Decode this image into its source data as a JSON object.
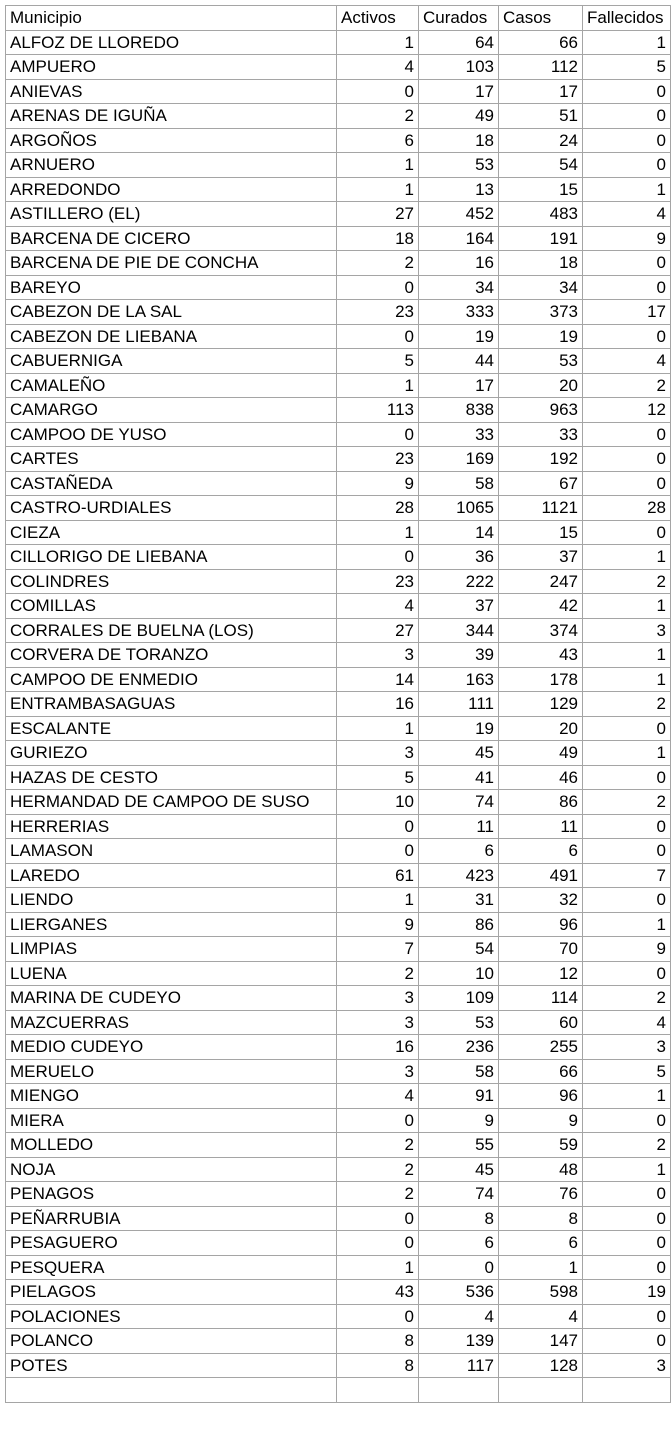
{
  "colors": {
    "background": "#ffffff",
    "gridline": "#a5a5a5",
    "text": "#000000"
  },
  "table": {
    "columns": [
      "Municipio",
      "Activos",
      "Curados",
      "Casos",
      "Fallecidos"
    ],
    "rows": [
      [
        "ALFOZ DE LLOREDO",
        "1",
        "64",
        "66",
        "1"
      ],
      [
        "AMPUERO",
        "4",
        "103",
        "112",
        "5"
      ],
      [
        "ANIEVAS",
        "0",
        "17",
        "17",
        "0"
      ],
      [
        "ARENAS DE IGUÑA",
        "2",
        "49",
        "51",
        "0"
      ],
      [
        "ARGOÑOS",
        "6",
        "18",
        "24",
        "0"
      ],
      [
        "ARNUERO",
        "1",
        "53",
        "54",
        "0"
      ],
      [
        "ARREDONDO",
        "1",
        "13",
        "15",
        "1"
      ],
      [
        "ASTILLERO (EL)",
        "27",
        "452",
        "483",
        "4"
      ],
      [
        "BARCENA DE CICERO",
        "18",
        "164",
        "191",
        "9"
      ],
      [
        "BARCENA DE PIE DE CONCHA",
        "2",
        "16",
        "18",
        "0"
      ],
      [
        "BAREYO",
        "0",
        "34",
        "34",
        "0"
      ],
      [
        "CABEZON DE LA SAL",
        "23",
        "333",
        "373",
        "17"
      ],
      [
        "CABEZON DE LIEBANA",
        "0",
        "19",
        "19",
        "0"
      ],
      [
        "CABUERNIGA",
        "5",
        "44",
        "53",
        "4"
      ],
      [
        "CAMALEÑO",
        "1",
        "17",
        "20",
        "2"
      ],
      [
        "CAMARGO",
        "113",
        "838",
        "963",
        "12"
      ],
      [
        "CAMPOO DE YUSO",
        "0",
        "33",
        "33",
        "0"
      ],
      [
        "CARTES",
        "23",
        "169",
        "192",
        "0"
      ],
      [
        "CASTAÑEDA",
        "9",
        "58",
        "67",
        "0"
      ],
      [
        "CASTRO-URDIALES",
        "28",
        "1065",
        "1121",
        "28"
      ],
      [
        "CIEZA",
        "1",
        "14",
        "15",
        "0"
      ],
      [
        "CILLORIGO DE LIEBANA",
        "0",
        "36",
        "37",
        "1"
      ],
      [
        "COLINDRES",
        "23",
        "222",
        "247",
        "2"
      ],
      [
        "COMILLAS",
        "4",
        "37",
        "42",
        "1"
      ],
      [
        "CORRALES DE BUELNA (LOS)",
        "27",
        "344",
        "374",
        "3"
      ],
      [
        "CORVERA DE TORANZO",
        "3",
        "39",
        "43",
        "1"
      ],
      [
        "CAMPOO DE ENMEDIO",
        "14",
        "163",
        "178",
        "1"
      ],
      [
        "ENTRAMBASAGUAS",
        "16",
        "111",
        "129",
        "2"
      ],
      [
        "ESCALANTE",
        "1",
        "19",
        "20",
        "0"
      ],
      [
        "GURIEZO",
        "3",
        "45",
        "49",
        "1"
      ],
      [
        "HAZAS DE CESTO",
        "5",
        "41",
        "46",
        "0"
      ],
      [
        "HERMANDAD DE CAMPOO DE SUSO",
        "10",
        "74",
        "86",
        "2"
      ],
      [
        "HERRERIAS",
        "0",
        "11",
        "11",
        "0"
      ],
      [
        "LAMASON",
        "0",
        "6",
        "6",
        "0"
      ],
      [
        "LAREDO",
        "61",
        "423",
        "491",
        "7"
      ],
      [
        "LIENDO",
        "1",
        "31",
        "32",
        "0"
      ],
      [
        "LIERGANES",
        "9",
        "86",
        "96",
        "1"
      ],
      [
        "LIMPIAS",
        "7",
        "54",
        "70",
        "9"
      ],
      [
        "LUENA",
        "2",
        "10",
        "12",
        "0"
      ],
      [
        "MARINA DE CUDEYO",
        "3",
        "109",
        "114",
        "2"
      ],
      [
        "MAZCUERRAS",
        "3",
        "53",
        "60",
        "4"
      ],
      [
        "MEDIO CUDEYO",
        "16",
        "236",
        "255",
        "3"
      ],
      [
        "MERUELO",
        "3",
        "58",
        "66",
        "5"
      ],
      [
        "MIENGO",
        "4",
        "91",
        "96",
        "1"
      ],
      [
        "MIERA",
        "0",
        "9",
        "9",
        "0"
      ],
      [
        "MOLLEDO",
        "2",
        "55",
        "59",
        "2"
      ],
      [
        "NOJA",
        "2",
        "45",
        "48",
        "1"
      ],
      [
        "PENAGOS",
        "2",
        "74",
        "76",
        "0"
      ],
      [
        "PEÑARRUBIA",
        "0",
        "8",
        "8",
        "0"
      ],
      [
        "PESAGUERO",
        "0",
        "6",
        "6",
        "0"
      ],
      [
        "PESQUERA",
        "1",
        "0",
        "1",
        "0"
      ],
      [
        "PIELAGOS",
        "43",
        "536",
        "598",
        "19"
      ],
      [
        "POLACIONES",
        "0",
        "4",
        "4",
        "0"
      ],
      [
        "POLANCO",
        "8",
        "139",
        "147",
        "0"
      ],
      [
        "POTES",
        "8",
        "117",
        "128",
        "3"
      ]
    ],
    "partial_bottom_row": [
      "",
      "",
      "",
      "",
      ""
    ]
  }
}
